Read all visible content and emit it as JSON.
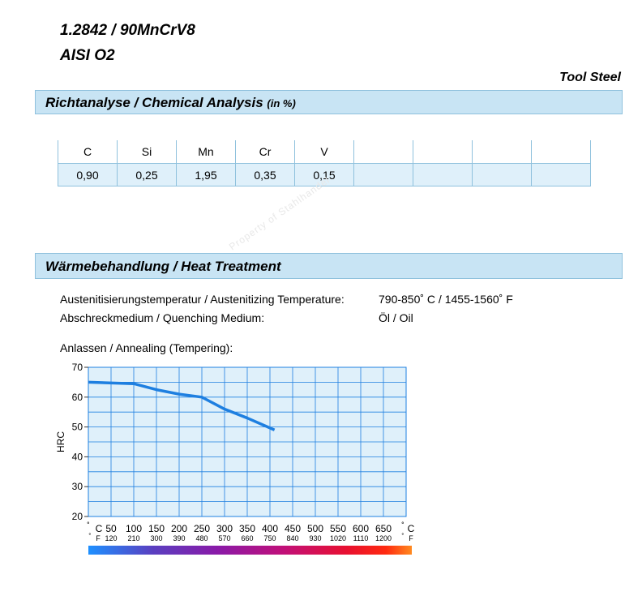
{
  "header": {
    "title_line1": "1.2842 / 90MnCrV8",
    "title_line2": "AISI O2",
    "category": "Tool Steel"
  },
  "chemical": {
    "heading": "Richtanalyse / Chemical Analysis",
    "unit": "(in %)",
    "elements": [
      "C",
      "Si",
      "Mn",
      "Cr",
      "V",
      "",
      "",
      "",
      ""
    ],
    "values": [
      "0,90",
      "0,25",
      "1,95",
      "0,35",
      "0,15",
      "",
      "",
      "",
      ""
    ]
  },
  "heat": {
    "heading": "Wärmebehandlung / Heat Treatment",
    "austenitizing_label": "Austenitisierungstemperatur / Austenitizing Temperature:",
    "austenitizing_value": "790-850˚ C / 1455-1560˚ F",
    "quenching_label": "Abschreckmedium / Quenching Medium:",
    "quenching_value": "Öl / Oil",
    "annealing_label": "Anlassen / Annealing (Tempering):",
    "watermark": "Property of Stahlhandel"
  },
  "colors": {
    "header_bar": "#c8e4f4",
    "grid_bg": "#dff0fa",
    "curve": "#1e7fe0",
    "gradient": [
      "#1e90ff",
      "#5a3fc0",
      "#8a1aa8",
      "#c0107a",
      "#e81030",
      "#ff2a10",
      "#ff8a20"
    ]
  },
  "chart_data": {
    "type": "line",
    "ylabel": "HRC",
    "ylim": [
      20,
      70
    ],
    "yticks": [
      "20",
      "30",
      "40",
      "50",
      "60",
      "70"
    ],
    "xlim": [
      0,
      700
    ],
    "xticks_c": [
      "C",
      "50",
      "100",
      "150",
      "200",
      "250",
      "300",
      "350",
      "400",
      "450",
      "500",
      "550",
      "600",
      "650",
      "C"
    ],
    "xticks_f": [
      "F",
      "120",
      "210",
      "300",
      "390",
      "480",
      "570",
      "660",
      "750",
      "840",
      "930",
      "1020",
      "1110",
      "1200",
      "F"
    ],
    "series": [
      {
        "x": [
          0,
          100,
          150,
          200,
          250,
          300,
          350,
          410
        ],
        "y": [
          65,
          64.5,
          62.5,
          61,
          60,
          56,
          53,
          49
        ]
      }
    ]
  }
}
